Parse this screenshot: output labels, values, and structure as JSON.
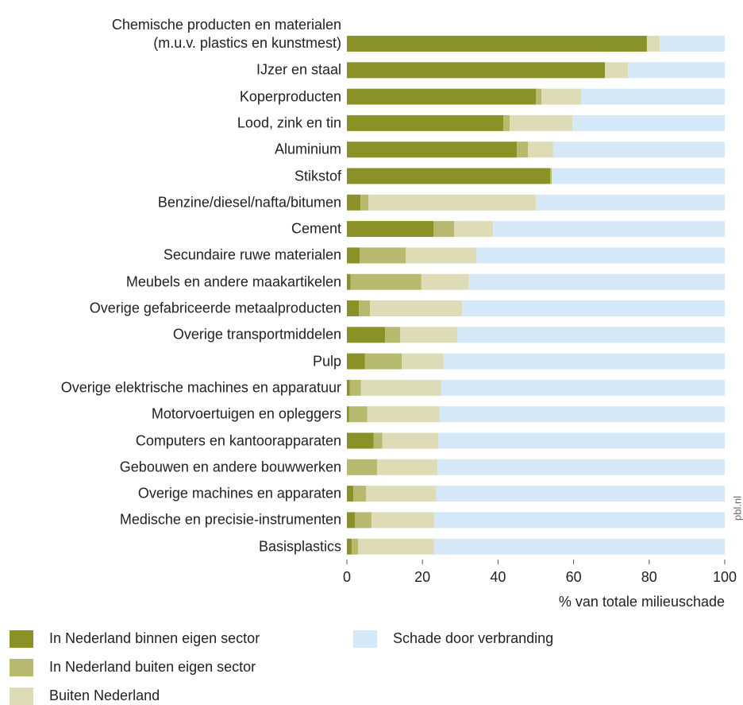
{
  "chart_data": {
    "type": "stacked-barh",
    "categories": [
      "Chemische producten en materialen\n(m.u.v. plastics en kunstmest)",
      "IJzer en staal",
      "Koperproducten",
      "Lood, zink en tin",
      "Aluminium",
      "Stikstof",
      "Benzine/diesel/nafta/bitumen",
      "Cement",
      "Secundaire ruwe materialen",
      "Meubels en andere maakartikelen",
      "Overige gefabriceerde metaalproducten",
      "Overige transportmiddelen",
      "Pulp",
      "Overige elektrische machines en apparatuur",
      "Motorvoertuigen en opleggers",
      "Computers en kantoorapparaten",
      "Gebouwen en andere bouwwerken",
      "Overige machines en apparaten",
      "Medische en precisie-instrumenten",
      "Basisplastics"
    ],
    "series": [
      {
        "name": "In Nederland binnen eigen sector",
        "color": "#8a9227",
        "values": [
          79.4,
          68.3,
          50.0,
          41.4,
          45.0,
          53.8,
          3.6,
          22.9,
          3.4,
          1.0,
          3.2,
          10.1,
          4.8,
          0.8,
          0.6,
          7.1,
          0,
          1.7,
          2.1,
          1.3
        ]
      },
      {
        "name": "In Nederland buiten eigen sector",
        "color": "#b7ba6e",
        "values": [
          0,
          0,
          1.5,
          1.7,
          2.9,
          0.4,
          2.1,
          5.5,
          12.2,
          18.7,
          2.9,
          4.0,
          9.7,
          2.9,
          4.8,
          2.3,
          8.0,
          3.4,
          4.4,
          1.7
        ]
      },
      {
        "name": "Buiten Nederland",
        "color": "#dedcb6",
        "values": [
          3.4,
          6.1,
          10.5,
          16.6,
          6.7,
          0,
          44.3,
          10.3,
          18.7,
          12.6,
          24.4,
          15.1,
          11.1,
          21.2,
          19.1,
          14.9,
          16.0,
          18.5,
          16.6,
          20.0
        ]
      },
      {
        "name": "Schade door verbranding",
        "color": "#d5e8f8",
        "values": [
          17.2,
          25.6,
          38.0,
          40.3,
          45.4,
          45.8,
          50.0,
          61.3,
          65.7,
          67.7,
          69.5,
          70.8,
          74.4,
          75.1,
          75.5,
          75.7,
          76.0,
          76.4,
          76.9,
          77.0
        ]
      }
    ],
    "xlim": [
      0,
      100
    ],
    "xticks": [
      0,
      20,
      40,
      60,
      80,
      100
    ],
    "xlabel": "% van totale milieuschade",
    "source": "pbl.nl"
  }
}
